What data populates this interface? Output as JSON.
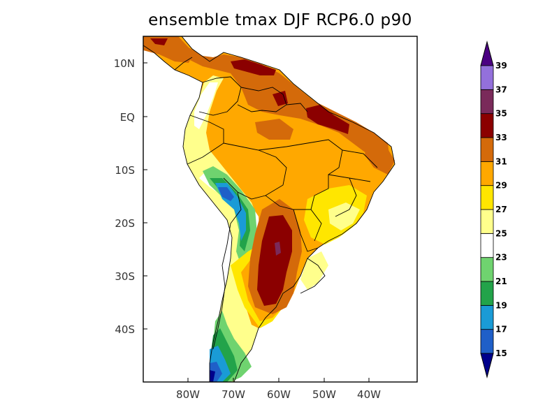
{
  "map": {
    "title": "ensemble tmax DJF RCP6.0 p90",
    "lat_ticks": [
      "10N",
      "EQ",
      "10S",
      "20S",
      "30S",
      "40S"
    ],
    "lon_ticks": [
      "80W",
      "70W",
      "60W",
      "50W",
      "40W"
    ],
    "extent": {
      "lon": [
        -90,
        -29
      ],
      "lat": [
        -49,
        14
      ]
    }
  },
  "colorbar": {
    "levels": [
      "15",
      "17",
      "19",
      "21",
      "23",
      "25",
      "27",
      "29",
      "31",
      "33",
      "35",
      "37",
      "39"
    ],
    "colors": [
      "#00008b",
      "#1f5fc8",
      "#1a9bd6",
      "#22a34a",
      "#6fd36f",
      "#ffffff",
      "#ffff8c",
      "#ffe600",
      "#ffa800",
      "#d46a0a",
      "#8b0000",
      "#7a2a5a",
      "#9370db",
      "#4b0082"
    ]
  }
}
